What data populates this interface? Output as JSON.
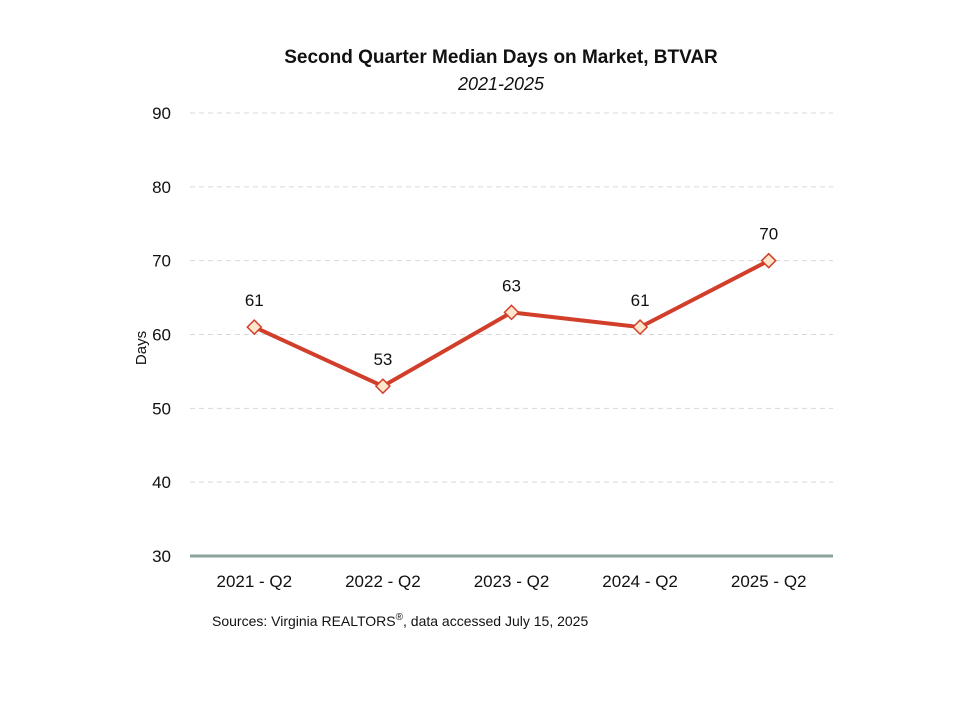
{
  "chart_data": {
    "type": "line",
    "title": "Second Quarter Median Days on Market, BTVAR",
    "subtitle": "2021-2025",
    "xlabel": "",
    "ylabel": "Days",
    "categories": [
      "2021 - Q2",
      "2022 - Q2",
      "2023 - Q2",
      "2024 - Q2",
      "2025 - Q2"
    ],
    "series": [
      {
        "values": [
          61,
          53,
          63,
          61,
          70
        ],
        "data_labels": [
          "61",
          "53",
          "63",
          "61",
          "70"
        ]
      }
    ],
    "ylim": [
      30,
      90
    ],
    "yticks": [
      30,
      40,
      50,
      60,
      70,
      80,
      90
    ],
    "grid": true,
    "legend": "none",
    "marker": "diamond",
    "colors": {
      "line": "#d13f2b",
      "marker_fill": "#fde6cc",
      "marker_stroke": "#d13f2b",
      "baseline": "#8aa39c",
      "grid": "#d8d8d8"
    }
  },
  "source": {
    "prefix": "Sources: Virginia REALTORS",
    "registered_mark": "®",
    "suffix": ", data accessed July 15, 2025"
  }
}
